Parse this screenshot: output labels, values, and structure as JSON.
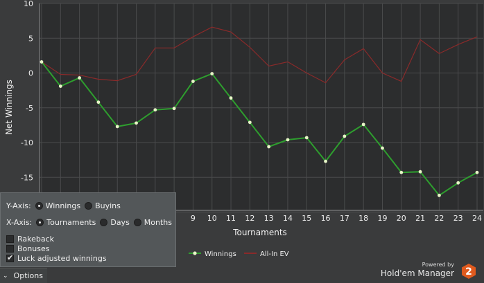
{
  "chart_data": {
    "type": "line",
    "xlabel": "Tournaments",
    "ylabel": "Net Winnings",
    "xlim": [
      1,
      24
    ],
    "ylim": [
      -20,
      10
    ],
    "x_ticks": [
      "9",
      "10",
      "11",
      "12",
      "13",
      "14",
      "15",
      "16",
      "17",
      "18",
      "19",
      "20",
      "21",
      "22",
      "23",
      "24"
    ],
    "y_ticks": [
      "10",
      "5",
      "0",
      "-5",
      "-10",
      "-15"
    ],
    "grid": true,
    "legend": "bottom-center",
    "series": [
      {
        "name": "Winnings",
        "color": "#2e9e2e",
        "x": [
          1,
          2,
          3,
          4,
          5,
          6,
          7,
          8,
          9,
          10,
          11,
          12,
          13,
          14,
          15,
          16,
          17,
          18,
          19,
          20,
          21,
          22,
          23,
          24
        ],
        "values": [
          1.6,
          -1.9,
          -0.7,
          -4.2,
          -7.7,
          -7.2,
          -5.3,
          -5.1,
          -1.2,
          -0.1,
          -3.6,
          -7.1,
          -10.6,
          -9.6,
          -9.3,
          -12.7,
          -9.1,
          -7.4,
          -10.8,
          -14.3,
          -14.2,
          -17.6,
          -15.8,
          -14.3
        ]
      },
      {
        "name": "All-In EV",
        "color": "#8a2a2a",
        "x": [
          1,
          2,
          3,
          4,
          5,
          6,
          7,
          8,
          9,
          10,
          11,
          12,
          13,
          14,
          15,
          16,
          17,
          18,
          19,
          20,
          21,
          22,
          23,
          24
        ],
        "values": [
          1.6,
          -0.2,
          -0.3,
          -0.9,
          -1.1,
          -0.2,
          3.6,
          3.6,
          5.2,
          6.6,
          5.9,
          3.7,
          1.0,
          1.6,
          0.0,
          -1.4,
          1.9,
          3.5,
          0.0,
          -1.2,
          4.8,
          2.8,
          4.1,
          5.2
        ]
      }
    ]
  },
  "options": {
    "y_axis_label": "Y-Axis:",
    "y_winnings": "Winnings",
    "y_buyins": "Buyins",
    "x_axis_label": "X-Axis:",
    "x_tournaments": "Tournaments",
    "x_days": "Days",
    "x_months": "Months",
    "rakeback": "Rakeback",
    "bonuses": "Bonuses",
    "luck_adjusted": "Luck adjusted winnings",
    "tab_label": "Options"
  },
  "brand": {
    "powered_by": "Powered by",
    "name": "Hold'em Manager",
    "logo_digit": "2",
    "logo_color": "#e05a1e"
  }
}
